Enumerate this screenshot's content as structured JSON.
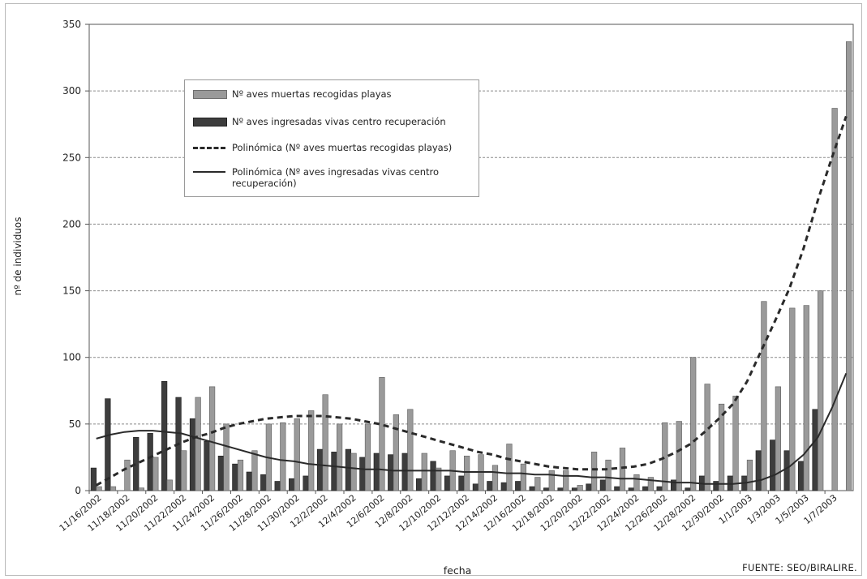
{
  "chart_data": {
    "type": "bar",
    "xlabel": "fecha",
    "ylabel": "nº de individuos",
    "ylim": [
      0,
      350
    ],
    "yticks": [
      0,
      50,
      100,
      150,
      200,
      250,
      300,
      350
    ],
    "grid": "horizontal dashed",
    "legend_placement": "upper-left inside plot",
    "tick_labels": [
      "11/16/2002",
      "11/18/2002",
      "11/20/2002",
      "11/22/2002",
      "11/24/2002",
      "11/26/2002",
      "11/28/2002",
      "11/30/2002",
      "12/2/2002",
      "12/4/2002",
      "12/6/2002",
      "12/8/2002",
      "12/10/2002",
      "12/12/2002",
      "12/14/2002",
      "12/16/2002",
      "12/18/2002",
      "12/20/2002",
      "12/22/2002",
      "12/24/2002",
      "12/26/2002",
      "12/28/2002",
      "12/30/2002",
      "1/1/2003",
      "1/3/2003",
      "1/5/2003",
      "1/7/2003"
    ],
    "categories": [
      "11/16/2002",
      "11/17/2002",
      "11/18/2002",
      "11/19/2002",
      "11/20/2002",
      "11/21/2002",
      "11/22/2002",
      "11/23/2002",
      "11/24/2002",
      "11/25/2002",
      "11/26/2002",
      "11/27/2002",
      "11/28/2002",
      "11/29/2002",
      "11/30/2002",
      "12/1/2002",
      "12/2/2002",
      "12/3/2002",
      "12/4/2002",
      "12/5/2002",
      "12/6/2002",
      "12/7/2002",
      "12/8/2002",
      "12/9/2002",
      "12/10/2002",
      "12/11/2002",
      "12/12/2002",
      "12/13/2002",
      "12/14/2002",
      "12/15/2002",
      "12/16/2002",
      "12/17/2002",
      "12/18/2002",
      "12/19/2002",
      "12/20/2002",
      "12/21/2002",
      "12/22/2002",
      "12/23/2002",
      "12/24/2002",
      "12/25/2002",
      "12/26/2002",
      "12/27/2002",
      "12/28/2002",
      "12/29/2002",
      "12/30/2002",
      "12/31/2002",
      "1/1/2003",
      "1/2/2003",
      "1/3/2003",
      "1/4/2003",
      "1/5/2003",
      "1/6/2003",
      "1/7/2003",
      "1/8/2003"
    ],
    "series": [
      {
        "name": "Nº aves muertas recogidas playas",
        "color": "#9a9a9a",
        "values": [
          3,
          3,
          23,
          2,
          25,
          8,
          30,
          70,
          78,
          50,
          23,
          30,
          50,
          51,
          54,
          60,
          72,
          50,
          28,
          50,
          85,
          57,
          61,
          28,
          17,
          30,
          26,
          27,
          19,
          35,
          20,
          10,
          15,
          15,
          4,
          29,
          23,
          32,
          12,
          10,
          51,
          52,
          100,
          80,
          65,
          71,
          23,
          142,
          78,
          137,
          139,
          150,
          287,
          337
        ]
      },
      {
        "name": "Nº aves ingresadas vivas centro recuperación",
        "color": "#3d3d3d",
        "values": [
          17,
          69,
          0,
          40,
          43,
          82,
          70,
          54,
          37,
          26,
          20,
          14,
          12,
          7,
          9,
          11,
          31,
          29,
          31,
          25,
          28,
          27,
          28,
          9,
          22,
          11,
          11,
          5,
          7,
          6,
          7,
          3,
          2,
          2,
          2,
          5,
          8,
          3,
          2,
          3,
          3,
          8,
          2,
          11,
          7,
          11,
          11,
          30,
          38,
          30,
          22,
          61,
          0,
          0
        ]
      },
      {
        "name": "Polinómica (Nº aves muertas recogidas playas)",
        "style": "dashed trend",
        "values": [
          4,
          10,
          16,
          21,
          26,
          31,
          36,
          40,
          43,
          47,
          50,
          52,
          54,
          55,
          56,
          56,
          56,
          55,
          54,
          52,
          50,
          47,
          44,
          41,
          38,
          35,
          32,
          29,
          27,
          24,
          22,
          20,
          18,
          17,
          16,
          16,
          16,
          17,
          18,
          20,
          24,
          29,
          35,
          44,
          54,
          65,
          82,
          105,
          128,
          152,
          182,
          218,
          250,
          281
        ]
      },
      {
        "name": "Polinómica (Nº aves ingresadas vivas centro recuperación)",
        "style": "solid trend",
        "values": [
          39,
          42,
          44,
          45,
          45,
          44,
          43,
          40,
          37,
          34,
          31,
          28,
          25,
          23,
          22,
          20,
          19,
          18,
          17,
          16,
          16,
          15,
          15,
          15,
          15,
          15,
          14,
          14,
          14,
          13,
          13,
          12,
          12,
          11,
          11,
          10,
          10,
          9,
          9,
          8,
          7,
          6,
          6,
          5,
          5,
          5,
          6,
          8,
          12,
          18,
          27,
          40,
          62,
          88
        ]
      }
    ]
  },
  "legend": {
    "items": [
      {
        "label": "Nº aves muertas recogidas playas"
      },
      {
        "label": "Nº aves ingresadas vivas centro recuperación"
      },
      {
        "label": "Polinómica (Nº aves muertas recogidas playas)"
      },
      {
        "label": "Polinómica (Nº aves ingresadas vivas centro recuperación)"
      }
    ]
  },
  "source": "FUENTE: SEO/BIRALIRE."
}
